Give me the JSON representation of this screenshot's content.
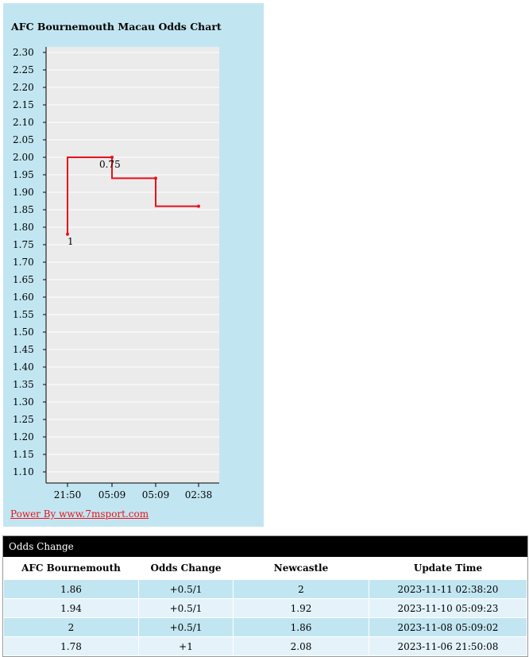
{
  "chart_data": {
    "type": "line",
    "title": "AFC Bournemouth Macau Odds Chart",
    "ylim": [
      1.1,
      2.3
    ],
    "y_ticks": [
      "2.30",
      "2.25",
      "2.20",
      "2.15",
      "2.10",
      "2.05",
      "2.00",
      "1.95",
      "1.90",
      "1.85",
      "1.80",
      "1.75",
      "1.70",
      "1.65",
      "1.60",
      "1.55",
      "1.50",
      "1.45",
      "1.40",
      "1.35",
      "1.30",
      "1.25",
      "1.20",
      "1.15",
      "1.10"
    ],
    "categories": [
      "21:50",
      "05:09",
      "05:09",
      "02:38"
    ],
    "step": true,
    "series": [
      {
        "values": [
          1.78,
          2.0,
          1.94,
          1.86
        ]
      }
    ],
    "point_labels": [
      "1",
      "0.75",
      "",
      ""
    ],
    "line_color": "#e8111c",
    "grid": true,
    "plot_background": "#ebebeb"
  },
  "footer_link": "Power By www.7msport.com",
  "odds_change": {
    "header": "Odds Change",
    "columns": [
      "AFC Bournemouth",
      "Odds Change",
      "Newcastle",
      "Update Time"
    ],
    "rows": [
      [
        "1.86",
        "+0.5/1",
        "2",
        "2023-11-11 02:38:20"
      ],
      [
        "1.94",
        "+0.5/1",
        "1.92",
        "2023-11-10 05:09:23"
      ],
      [
        "2",
        "+0.5/1",
        "1.86",
        "2023-11-08 05:09:02"
      ],
      [
        "1.78",
        "+1",
        "2.08",
        "2023-11-06 21:50:08"
      ]
    ]
  }
}
